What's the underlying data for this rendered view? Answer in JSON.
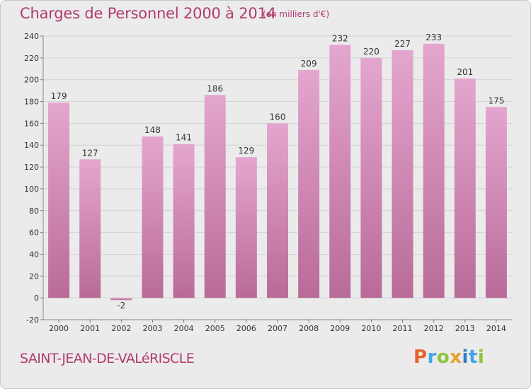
{
  "header": {
    "title": "Charges de Personnel 2000 à 2014",
    "subtitle": "(en milliers d'€)"
  },
  "footer": {
    "place": "SAINT-JEAN-DE-VALéRISCLE",
    "logo_text": "Proxiti"
  },
  "colors": {
    "bar": "#b96b98",
    "bar_light": "#e4a6ce",
    "title": "#b13b71",
    "plot_background": "#ebebeb",
    "logo": [
      "#e5642b",
      "#43a6e6",
      "#8dc43c",
      "#e5a228",
      "#2f7fc5",
      "#43a6e6",
      "#8dc43c"
    ]
  },
  "chart_data": {
    "type": "bar",
    "title": "Charges de Personnel 2000 à 2014",
    "subtitle": "(en milliers d'€)",
    "categories": [
      "2000",
      "2001",
      "2002",
      "2003",
      "2004",
      "2005",
      "2006",
      "2007",
      "2008",
      "2009",
      "2010",
      "2011",
      "2012",
      "2013",
      "2014"
    ],
    "values": [
      179,
      127,
      -2,
      148,
      141,
      186,
      129,
      160,
      209,
      232,
      220,
      227,
      233,
      201,
      175
    ],
    "ylim": [
      -20,
      240
    ],
    "yticks": [
      -20,
      0,
      20,
      40,
      60,
      80,
      100,
      120,
      140,
      160,
      180,
      200,
      220,
      240
    ],
    "grid": true,
    "legend": "none"
  }
}
